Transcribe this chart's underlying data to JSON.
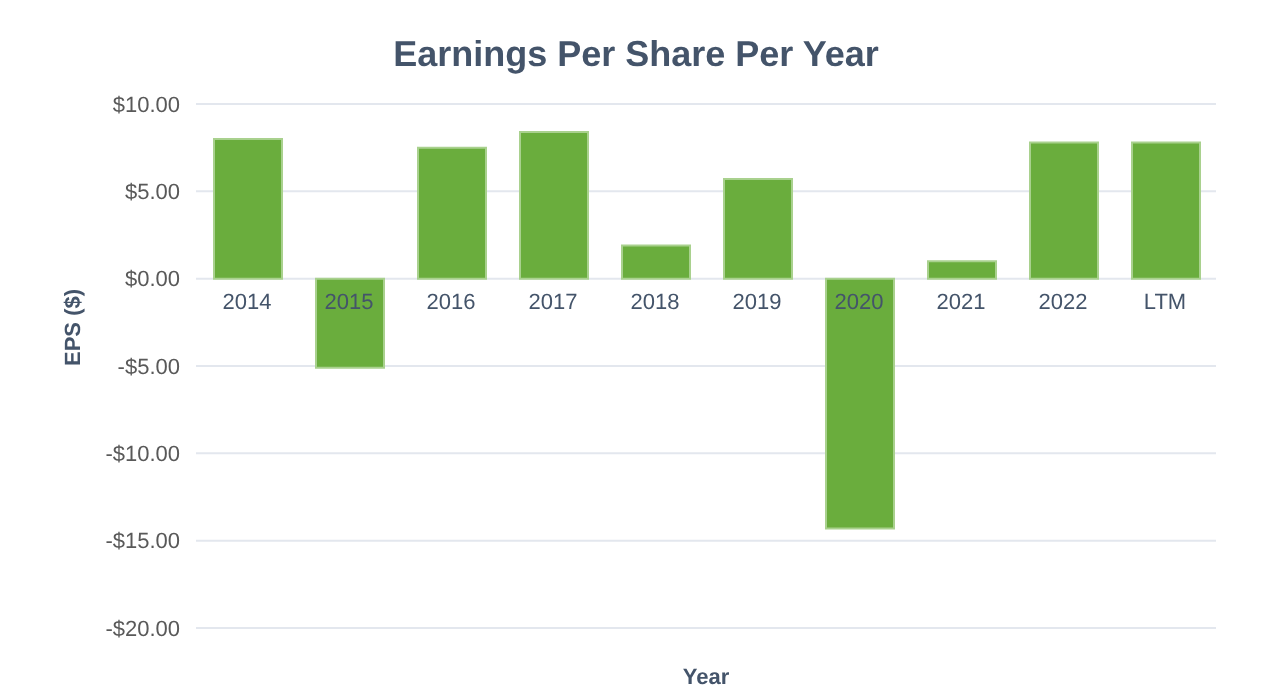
{
  "chart_data": {
    "type": "bar",
    "title": "Earnings Per Share Per Year",
    "xlabel": "Year",
    "ylabel": "EPS ($)",
    "categories": [
      "2014",
      "2015",
      "2016",
      "2017",
      "2018",
      "2019",
      "2020",
      "2021",
      "2022",
      "LTM"
    ],
    "values": [
      8.0,
      -5.1,
      7.5,
      8.4,
      1.9,
      5.7,
      -14.3,
      1.0,
      7.8,
      7.8
    ],
    "color": "#6aad3d",
    "ylim": [
      -20,
      10
    ],
    "yticks": [
      {
        "value": -20,
        "label": "-$20.00"
      },
      {
        "value": -15,
        "label": "-$15.00"
      },
      {
        "value": -10,
        "label": "-$10.00"
      },
      {
        "value": -5,
        "label": "-$5.00"
      },
      {
        "value": 0,
        "label": "$0.00"
      },
      {
        "value": 5,
        "label": "$5.00"
      },
      {
        "value": 10,
        "label": "$10.00"
      }
    ],
    "grid": "y",
    "legend": false
  }
}
